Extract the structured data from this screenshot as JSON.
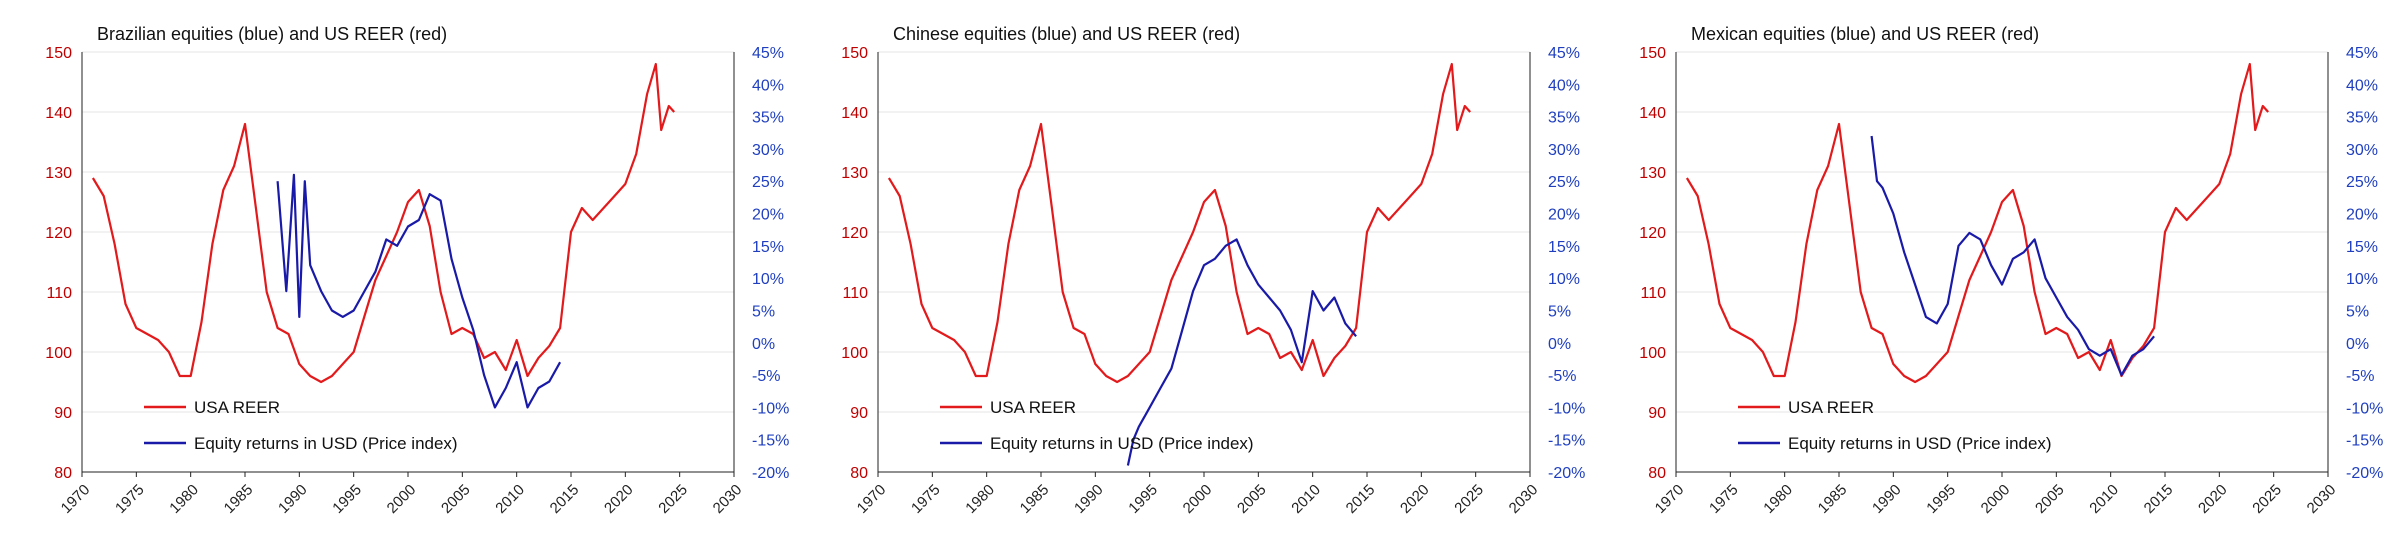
{
  "colors": {
    "reer": "#e31a1c",
    "equity": "#1a1aa8",
    "left_axis_text": "#c00000",
    "right_axis_text": "#1f3fbf",
    "grid": "#e6e6e6"
  },
  "chart_data": [
    {
      "type": "line",
      "title": "Brazilian equities (blue) and US REER (red)",
      "x_ticks": [
        "1970",
        "1975",
        "1980",
        "1985",
        "1990",
        "1995",
        "2000",
        "2005",
        "2010",
        "2015",
        "2020",
        "2025",
        "2030"
      ],
      "y_left_ticks": [
        "80",
        "90",
        "100",
        "110",
        "120",
        "130",
        "140",
        "150"
      ],
      "y_right_ticks": [
        "-20%",
        "-15%",
        "-10%",
        "-5%",
        "0%",
        "5%",
        "10%",
        "15%",
        "20%",
        "25%",
        "30%",
        "35%",
        "40%",
        "45%"
      ],
      "xlim": [
        1970,
        2030
      ],
      "ylim_left": [
        80,
        150
      ],
      "ylim_right": [
        -20,
        45
      ],
      "legend": [
        "USA REER",
        "Equity returns in USD (Price index)"
      ],
      "series": [
        {
          "name": "USA REER",
          "axis": "left",
          "x": [
            1971,
            1972,
            1973,
            1974,
            1975,
            1976,
            1977,
            1978,
            1979,
            1980,
            1981,
            1982,
            1983,
            1984,
            1985,
            1986,
            1987,
            1988,
            1989,
            1990,
            1991,
            1992,
            1993,
            1994,
            1995,
            1996,
            1997,
            1998,
            1999,
            2000,
            2001,
            2002,
            2003,
            2004,
            2005,
            2006,
            2007,
            2008,
            2009,
            2010,
            2011,
            2012,
            2013,
            2014,
            2015,
            2016,
            2017,
            2018,
            2019,
            2020,
            2021,
            2022,
            2022.8,
            2023.3,
            2024,
            2024.5
          ],
          "y": [
            129,
            126,
            118,
            108,
            104,
            103,
            102,
            100,
            96,
            96,
            105,
            118,
            127,
            131,
            138,
            124,
            110,
            104,
            103,
            98,
            96,
            95,
            96,
            98,
            100,
            106,
            112,
            116,
            120,
            125,
            127,
            121,
            110,
            103,
            104,
            103,
            99,
            100,
            97,
            102,
            96,
            99,
            101,
            104,
            120,
            124,
            122,
            124,
            126,
            128,
            133,
            143,
            148,
            137,
            141,
            140
          ]
        },
        {
          "name": "Equity returns in USD (Price index)",
          "axis": "right",
          "x": [
            1988,
            1988.8,
            1989.5,
            1990,
            1990.5,
            1991,
            1992,
            1993,
            1994,
            1995,
            1996,
            1997,
            1998,
            1999,
            2000,
            2001,
            2002,
            2003,
            2004,
            2005,
            2006,
            2007,
            2008,
            2009,
            2010,
            2011,
            2012,
            2013,
            2014
          ],
          "y": [
            25,
            8,
            26,
            4,
            25,
            12,
            8,
            5,
            4,
            5,
            8,
            11,
            16,
            15,
            18,
            19,
            23,
            22,
            13,
            7,
            2,
            -5,
            -10,
            -7,
            -3,
            -10,
            -7,
            -6,
            -3
          ]
        }
      ]
    },
    {
      "type": "line",
      "title": "Chinese equities (blue) and US REER (red)",
      "x_ticks": [
        "1970",
        "1975",
        "1980",
        "1985",
        "1990",
        "1995",
        "2000",
        "2005",
        "2010",
        "2015",
        "2020",
        "2025",
        "2030"
      ],
      "y_left_ticks": [
        "80",
        "90",
        "100",
        "110",
        "120",
        "130",
        "140",
        "150"
      ],
      "y_right_ticks": [
        "-20%",
        "-15%",
        "-10%",
        "-5%",
        "0%",
        "5%",
        "10%",
        "15%",
        "20%",
        "25%",
        "30%",
        "35%",
        "40%",
        "45%"
      ],
      "xlim": [
        1970,
        2030
      ],
      "ylim_left": [
        80,
        150
      ],
      "ylim_right": [
        -20,
        45
      ],
      "legend": [
        "USA REER",
        "Equity returns in USD (Price index)"
      ],
      "series": [
        {
          "name": "USA REER",
          "axis": "left",
          "x": [
            1971,
            1972,
            1973,
            1974,
            1975,
            1976,
            1977,
            1978,
            1979,
            1980,
            1981,
            1982,
            1983,
            1984,
            1985,
            1986,
            1987,
            1988,
            1989,
            1990,
            1991,
            1992,
            1993,
            1994,
            1995,
            1996,
            1997,
            1998,
            1999,
            2000,
            2001,
            2002,
            2003,
            2004,
            2005,
            2006,
            2007,
            2008,
            2009,
            2010,
            2011,
            2012,
            2013,
            2014,
            2015,
            2016,
            2017,
            2018,
            2019,
            2020,
            2021,
            2022,
            2022.8,
            2023.3,
            2024,
            2024.5
          ],
          "y": [
            129,
            126,
            118,
            108,
            104,
            103,
            102,
            100,
            96,
            96,
            105,
            118,
            127,
            131,
            138,
            124,
            110,
            104,
            103,
            98,
            96,
            95,
            96,
            98,
            100,
            106,
            112,
            116,
            120,
            125,
            127,
            121,
            110,
            103,
            104,
            103,
            99,
            100,
            97,
            102,
            96,
            99,
            101,
            104,
            120,
            124,
            122,
            124,
            126,
            128,
            133,
            143,
            148,
            137,
            141,
            140
          ]
        },
        {
          "name": "Equity returns in USD (Price index)",
          "axis": "right",
          "x": [
            1993,
            1993.5,
            1994,
            1995,
            1996,
            1997,
            1998,
            1999,
            2000,
            2001,
            2002,
            2003,
            2004,
            2005,
            2006,
            2007,
            2008,
            2009,
            2010,
            2011,
            2012,
            2013,
            2014
          ],
          "y": [
            -19,
            -15,
            -13,
            -10,
            -7,
            -4,
            2,
            8,
            12,
            13,
            15,
            16,
            12,
            9,
            7,
            5,
            2,
            -3,
            8,
            5,
            7,
            3,
            1
          ]
        }
      ]
    },
    {
      "type": "line",
      "title": "Mexican equities (blue) and US REER (red)",
      "x_ticks": [
        "1970",
        "1975",
        "1980",
        "1985",
        "1990",
        "1995",
        "2000",
        "2005",
        "2010",
        "2015",
        "2020",
        "2025",
        "2030"
      ],
      "y_left_ticks": [
        "80",
        "90",
        "100",
        "110",
        "120",
        "130",
        "140",
        "150"
      ],
      "y_right_ticks": [
        "-20%",
        "-15%",
        "-10%",
        "-5%",
        "0%",
        "5%",
        "10%",
        "15%",
        "20%",
        "25%",
        "30%",
        "35%",
        "40%",
        "45%"
      ],
      "xlim": [
        1970,
        2030
      ],
      "ylim_left": [
        80,
        150
      ],
      "ylim_right": [
        -20,
        45
      ],
      "legend": [
        "USA REER",
        "Equity returns in USD (Price index)"
      ],
      "series": [
        {
          "name": "USA REER",
          "axis": "left",
          "x": [
            1971,
            1972,
            1973,
            1974,
            1975,
            1976,
            1977,
            1978,
            1979,
            1980,
            1981,
            1982,
            1983,
            1984,
            1985,
            1986,
            1987,
            1988,
            1989,
            1990,
            1991,
            1992,
            1993,
            1994,
            1995,
            1996,
            1997,
            1998,
            1999,
            2000,
            2001,
            2002,
            2003,
            2004,
            2005,
            2006,
            2007,
            2008,
            2009,
            2010,
            2011,
            2012,
            2013,
            2014,
            2015,
            2016,
            2017,
            2018,
            2019,
            2020,
            2021,
            2022,
            2022.8,
            2023.3,
            2024,
            2024.5
          ],
          "y": [
            129,
            126,
            118,
            108,
            104,
            103,
            102,
            100,
            96,
            96,
            105,
            118,
            127,
            131,
            138,
            124,
            110,
            104,
            103,
            98,
            96,
            95,
            96,
            98,
            100,
            106,
            112,
            116,
            120,
            125,
            127,
            121,
            110,
            103,
            104,
            103,
            99,
            100,
            97,
            102,
            96,
            99,
            101,
            104,
            120,
            124,
            122,
            124,
            126,
            128,
            133,
            143,
            148,
            137,
            141,
            140
          ]
        },
        {
          "name": "Equity returns in USD (Price index)",
          "axis": "right",
          "x": [
            1988,
            1988.5,
            1989,
            1990,
            1991,
            1992,
            1993,
            1994,
            1995,
            1996,
            1997,
            1998,
            1999,
            2000,
            2001,
            2002,
            2003,
            2004,
            2005,
            2006,
            2007,
            2008,
            2009,
            2010,
            2011,
            2012,
            2013,
            2014
          ],
          "y": [
            32,
            25,
            24,
            20,
            14,
            9,
            4,
            3,
            6,
            15,
            17,
            16,
            12,
            9,
            13,
            14,
            16,
            10,
            7,
            4,
            2,
            -1,
            -2,
            -1,
            -5,
            -2,
            -1,
            1
          ]
        }
      ]
    }
  ]
}
